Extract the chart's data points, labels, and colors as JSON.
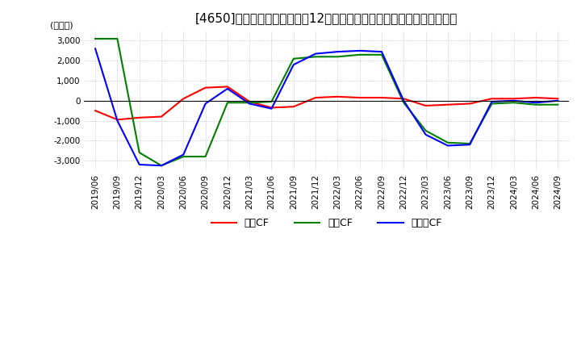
{
  "title": "[4650]　キャッシュフローの12か月移動合計の対前年同期増減額の推移",
  "ylabel": "(百万円)",
  "ylim": [
    -3500,
    3500
  ],
  "yticks": [
    -3000,
    -2000,
    -1000,
    0,
    1000,
    2000,
    3000
  ],
  "legend_labels": [
    "営業CF",
    "投資CF",
    "フリーCF"
  ],
  "legend_colors": [
    "#ff0000",
    "#008000",
    "#0000ff"
  ],
  "dates": [
    "2019/06",
    "2019/09",
    "2019/12",
    "2020/03",
    "2020/06",
    "2020/09",
    "2020/12",
    "2021/03",
    "2021/06",
    "2021/09",
    "2021/12",
    "2022/03",
    "2022/06",
    "2022/09",
    "2022/12",
    "2023/03",
    "2023/06",
    "2023/09",
    "2023/12",
    "2024/03",
    "2024/06",
    "2024/09"
  ],
  "eigyo_cf": [
    -500,
    -950,
    -850,
    -800,
    100,
    650,
    700,
    -50,
    -350,
    -300,
    150,
    200,
    150,
    150,
    100,
    -250,
    -200,
    -150,
    100,
    100,
    150,
    100
  ],
  "toshi_cf": [
    3100,
    3100,
    -2600,
    -3250,
    -2800,
    -2800,
    -100,
    -100,
    -50,
    2100,
    2200,
    2200,
    2300,
    2300,
    -100,
    -1500,
    -2100,
    -2150,
    -150,
    -100,
    -200,
    -200
  ],
  "free_cf": [
    2600,
    -1000,
    -3200,
    -3250,
    -2700,
    -150,
    600,
    -150,
    -400,
    1800,
    2350,
    2450,
    2500,
    2450,
    0,
    -1700,
    -2250,
    -2200,
    -50,
    0,
    -100,
    0
  ],
  "background_color": "#ffffff",
  "grid_color": "#aaaaaa",
  "title_fontsize": 11,
  "tick_fontsize": 7.5,
  "ylabel_fontsize": 8
}
